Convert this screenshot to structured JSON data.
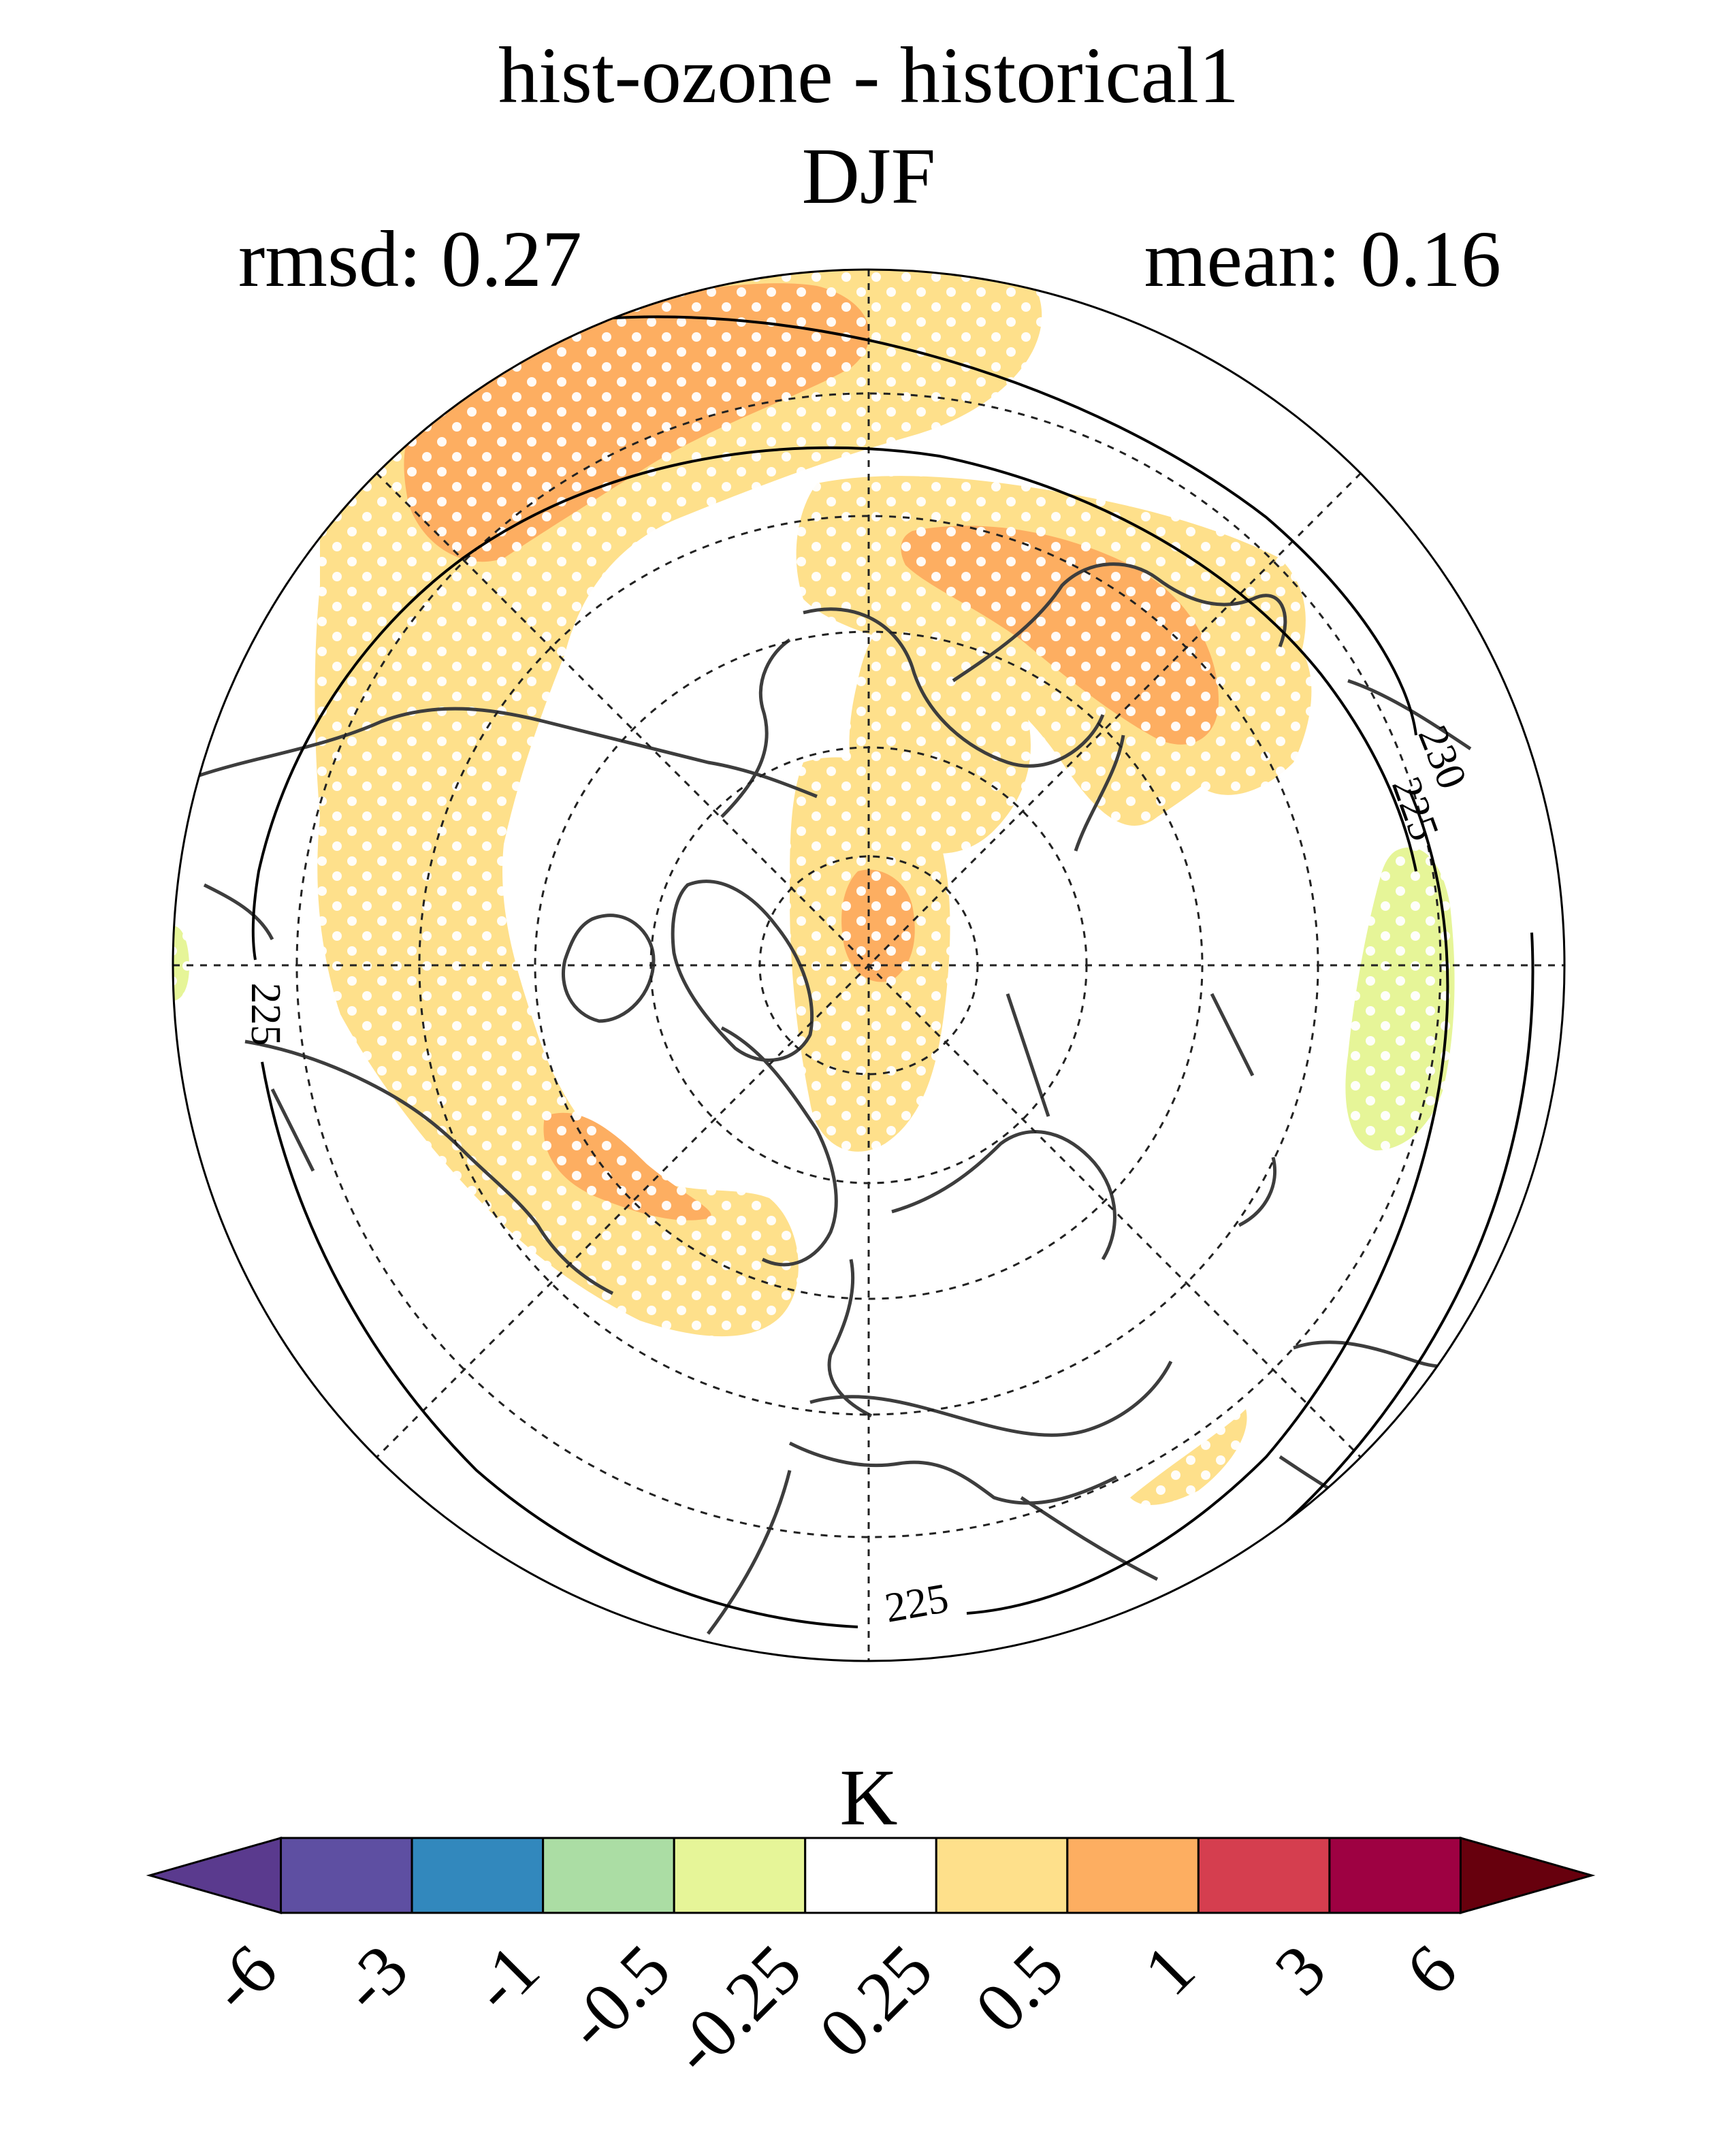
{
  "title": {
    "line1": "hist-ozone - historical1",
    "line2": "DJF"
  },
  "stats": {
    "rmsd": "rmsd: 0.27",
    "mean": "mean: 0.16"
  },
  "map": {
    "projection": "north-polar-stereographic",
    "stippling": "white dots mark significant regions",
    "contour_labels": [
      "230",
      "225",
      "225",
      "225"
    ]
  },
  "colorbar": {
    "unit": "K",
    "ticks": [
      "-6",
      "-3",
      "-1",
      "-0.5",
      "-0.25",
      "0.25",
      "0.5",
      "1",
      "3",
      "6"
    ],
    "colors": [
      "#5a3a8e",
      "#5e4fa2",
      "#3288bd",
      "#abdda4",
      "#e6f598",
      "#ffffff",
      "#fee08b",
      "#fdae61",
      "#d53e4f",
      "#9e0142",
      "#67000d"
    ]
  }
}
